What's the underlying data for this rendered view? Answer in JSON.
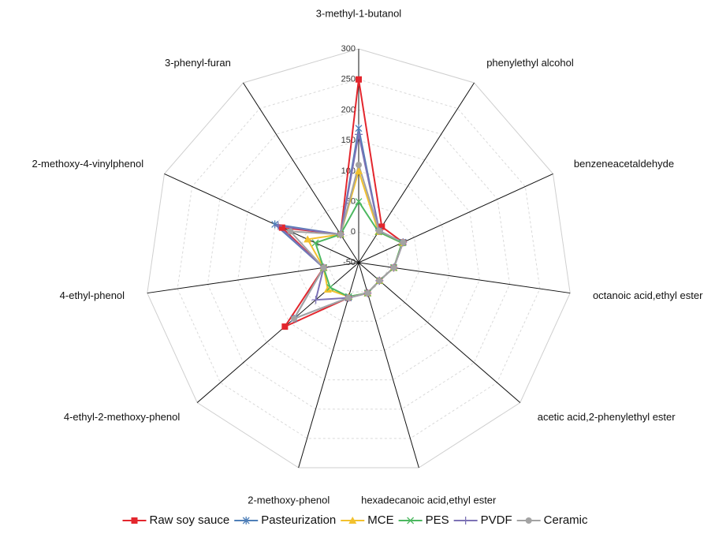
{
  "chart_data": {
    "type": "radar",
    "categories": [
      "3-methyl-1-butanol",
      "phenylethyl alcohol",
      "benzeneacetaldehyde",
      "octanoic acid,ethyl ester",
      "acetic acid,2-phenylethyl ester",
      "hexadecanoic acid,ethyl ester",
      "2-methoxy-phenol",
      "4-ethyl-2-methoxy-phenol",
      "4-ethyl-phenol",
      "2-methoxy-4-vinylphenol",
      "3-phenyl-furan"
    ],
    "rlim": [
      -50,
      300
    ],
    "rticks": [
      -50,
      0,
      50,
      100,
      150,
      200,
      250,
      300
    ],
    "grid": true,
    "legend": "bottom",
    "series": [
      {
        "name": "Raw soy sauce",
        "color": "#e3262d",
        "marker": "square",
        "values": [
          250,
          20,
          30,
          8,
          -5,
          2,
          10,
          110,
          8,
          88,
          5
        ]
      },
      {
        "name": "Pasteurization",
        "color": "#4f7fb8",
        "marker": "asterisk",
        "values": [
          170,
          12,
          30,
          8,
          -5,
          2,
          10,
          90,
          8,
          101,
          5
        ]
      },
      {
        "name": "MCE",
        "color": "#f2c12e",
        "marker": "triangle",
        "values": [
          100,
          10,
          28,
          8,
          -5,
          2,
          8,
          17,
          8,
          42,
          5
        ]
      },
      {
        "name": "PES",
        "color": "#4cb860",
        "marker": "x",
        "values": [
          50,
          10,
          28,
          8,
          -5,
          2,
          8,
          12,
          8,
          28,
          5
        ]
      },
      {
        "name": "PVDF",
        "color": "#7c72b5",
        "marker": "plus",
        "values": [
          160,
          12,
          30,
          8,
          -5,
          2,
          10,
          43,
          8,
          95,
          5
        ]
      },
      {
        "name": "Ceramic",
        "color": "#a3a3a3",
        "marker": "circle",
        "values": [
          110,
          12,
          30,
          8,
          -5,
          2,
          10,
          90,
          8,
          73,
          5
        ]
      }
    ]
  }
}
